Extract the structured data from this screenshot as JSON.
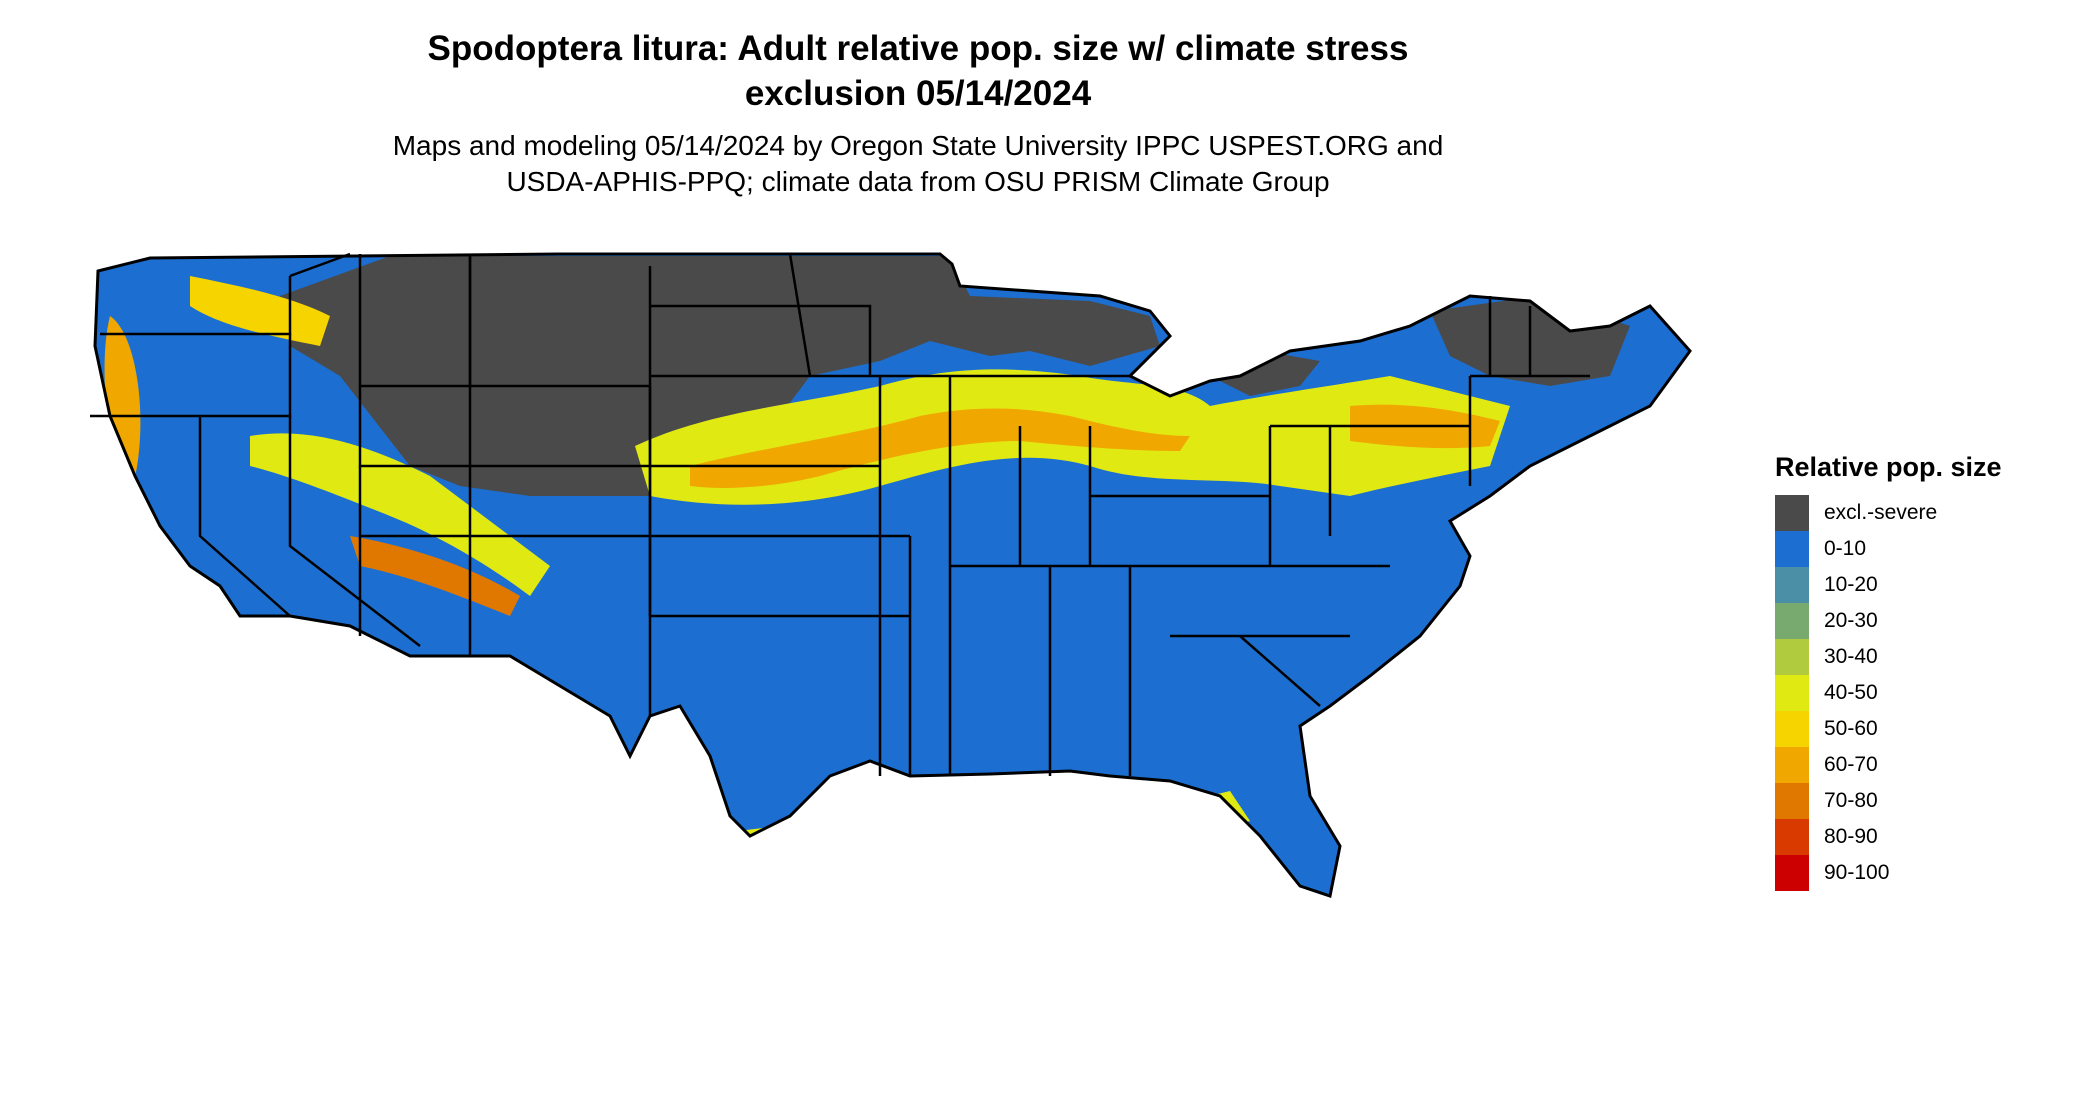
{
  "title_line1": "Spodoptera litura: Adult relative pop. size w/ climate stress",
  "title_line2": "exclusion 05/14/2024",
  "subtitle_line1": "Maps and modeling 05/14/2024 by Oregon State University IPPC USPEST.ORG and",
  "subtitle_line2": "USDA-APHIS-PPQ; climate data from OSU PRISM Climate Group",
  "legend": {
    "title": "Relative pop. size",
    "items": [
      {
        "label": "excl.-severe",
        "color": "#4a4a4a"
      },
      {
        "label": "0-10",
        "color": "#1c6fd1"
      },
      {
        "label": "10-20",
        "color": "#4a8fa6"
      },
      {
        "label": "20-30",
        "color": "#78a96e"
      },
      {
        "label": "30-40",
        "color": "#b0cc3e"
      },
      {
        "label": "40-50",
        "color": "#e0ea12"
      },
      {
        "label": "50-60",
        "color": "#f5d400"
      },
      {
        "label": "60-70",
        "color": "#f0a800"
      },
      {
        "label": "70-80",
        "color": "#e07800"
      },
      {
        "label": "80-90",
        "color": "#d83a00"
      },
      {
        "label": "90-100",
        "color": "#cc0000"
      }
    ]
  }
}
